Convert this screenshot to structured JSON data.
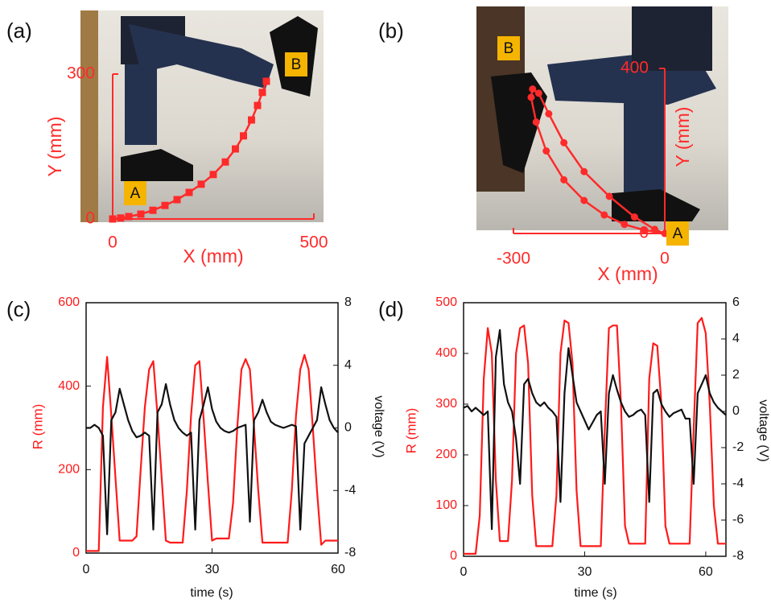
{
  "chart_data": [
    {
      "type": "line",
      "label": "(a)",
      "xlabel": "X (mm)",
      "ylabel": "Y (mm)",
      "color": "#ff2a2a",
      "marker": "square",
      "annotations": [
        "A",
        "B"
      ],
      "xlim": [
        0,
        500
      ],
      "xticks": [
        0,
        500
      ],
      "ylim": [
        0,
        300
      ],
      "yticks": [
        0,
        300
      ],
      "x": [
        0,
        20,
        40,
        70,
        100,
        130,
        160,
        190,
        220,
        250,
        280,
        305,
        325,
        345,
        360,
        372,
        382
      ],
      "values": [
        0,
        2,
        5,
        10,
        18,
        28,
        40,
        55,
        72,
        92,
        118,
        145,
        172,
        205,
        235,
        262,
        285
      ]
    },
    {
      "type": "line",
      "label": "(b)",
      "xlabel": "X (mm)",
      "ylabel": "Y (mm)",
      "color": "#ff2a2a",
      "marker": "circle",
      "annotations": [
        "A",
        "B"
      ],
      "xlim": [
        -300,
        0
      ],
      "xticks": [
        -300,
        0
      ],
      "ylim": [
        0,
        400
      ],
      "yticks": [
        0,
        400
      ],
      "x": [
        0,
        -40,
        -80,
        -120,
        -160,
        -200,
        -235,
        -255,
        -265,
        -262,
        -250,
        -230,
        -200,
        -160,
        -110,
        -60,
        -20,
        0
      ],
      "values": [
        0,
        8,
        22,
        45,
        80,
        130,
        200,
        270,
        330,
        350,
        340,
        290,
        220,
        150,
        90,
        40,
        10,
        0
      ]
    },
    {
      "type": "line",
      "label": "(c)",
      "xlabel": "time (s)",
      "ylabel": "R (mm)",
      "y2label": "voltage (V)",
      "xlim": [
        0,
        60
      ],
      "xticks": [
        0,
        30,
        60
      ],
      "ylim": [
        0,
        600
      ],
      "yticks": [
        0,
        200,
        400,
        600
      ],
      "y2lim": [
        -8,
        8
      ],
      "y2ticks": [
        -8,
        -4,
        0,
        4,
        8
      ],
      "x": [
        0,
        1,
        2,
        3,
        4,
        5,
        6,
        7,
        8,
        9,
        10,
        11,
        12,
        13,
        14,
        15,
        16,
        17,
        18,
        19,
        20,
        21,
        22,
        23,
        24,
        25,
        26,
        27,
        28,
        29,
        30,
        31,
        32,
        33,
        34,
        35,
        36,
        37,
        38,
        39,
        40,
        41,
        42,
        43,
        44,
        45,
        46,
        47,
        48,
        49,
        50,
        51,
        52,
        53,
        54,
        55,
        56,
        57,
        58,
        59,
        60
      ],
      "series": [
        {
          "color": "#ff1a1a",
          "values": [
            5,
            5,
            5,
            5,
            350,
            470,
            330,
            180,
            30,
            30,
            30,
            30,
            40,
            200,
            350,
            440,
            460,
            330,
            180,
            30,
            25,
            25,
            25,
            25,
            150,
            330,
            450,
            460,
            320,
            170,
            30,
            35,
            35,
            35,
            35,
            120,
            300,
            440,
            465,
            440,
            300,
            150,
            25,
            25,
            25,
            25,
            25,
            25,
            25,
            150,
            330,
            440,
            475,
            440,
            300,
            150,
            20,
            30,
            30,
            30,
            30
          ]
        },
        {
          "color": "#111111",
          "axis": "y2",
          "values": [
            0,
            0,
            0.2,
            0,
            -0.5,
            -6.8,
            0.5,
            1,
            2.5,
            1.5,
            0.5,
            -0.2,
            -0.6,
            -0.5,
            -0.3,
            -0.5,
            -6.5,
            1,
            1.5,
            2.8,
            1.5,
            0.5,
            0,
            -0.3,
            -0.5,
            -0.3,
            -6.5,
            0.5,
            1.5,
            2.6,
            1.2,
            0.4,
            0,
            -0.2,
            -0.3,
            -0.2,
            0,
            0.1,
            0.2,
            -6,
            0.5,
            1,
            1.8,
            1,
            0.4,
            0.2,
            0.1,
            0,
            0.1,
            0.2,
            0.1,
            -6.5,
            -1,
            -0.5,
            0,
            0.5,
            2.6,
            1.5,
            0.5,
            0,
            -0.3
          ]
        }
      ]
    },
    {
      "type": "line",
      "label": "(d)",
      "xlabel": "time (s)",
      "ylabel": "R (mm)",
      "y2label": "voltage (V)",
      "xlim": [
        0,
        65
      ],
      "xticks": [
        0,
        30,
        60
      ],
      "ylim": [
        0,
        500
      ],
      "yticks": [
        0,
        100,
        200,
        300,
        400,
        500
      ],
      "y2lim": [
        -8,
        6
      ],
      "y2ticks": [
        -8,
        -6,
        -4,
        -2,
        0,
        2,
        4,
        6
      ],
      "x": [
        0,
        1,
        2,
        3,
        4,
        5,
        6,
        7,
        8,
        9,
        10,
        11,
        12,
        13,
        14,
        15,
        16,
        17,
        18,
        19,
        20,
        21,
        22,
        23,
        24,
        25,
        26,
        27,
        28,
        29,
        30,
        31,
        32,
        33,
        34,
        35,
        36,
        37,
        38,
        39,
        40,
        41,
        42,
        43,
        44,
        45,
        46,
        47,
        48,
        49,
        50,
        51,
        52,
        53,
        54,
        55,
        56,
        57,
        58,
        59,
        60,
        61,
        62,
        63,
        64,
        65
      ],
      "series": [
        {
          "color": "#ff1a1a",
          "values": [
            5,
            5,
            5,
            5,
            80,
            350,
            450,
            400,
            150,
            30,
            30,
            30,
            150,
            400,
            450,
            455,
            380,
            120,
            20,
            20,
            20,
            20,
            20,
            120,
            400,
            465,
            460,
            380,
            130,
            20,
            20,
            20,
            20,
            20,
            20,
            250,
            450,
            455,
            455,
            300,
            60,
            25,
            25,
            25,
            25,
            25,
            350,
            420,
            415,
            300,
            60,
            25,
            25,
            25,
            25,
            25,
            25,
            250,
            460,
            470,
            440,
            300,
            100,
            25,
            25,
            25
          ]
        },
        {
          "color": "#111111",
          "axis": "y2",
          "values": [
            0.2,
            0.3,
            0,
            0.2,
            0,
            -0.2,
            0,
            -6.5,
            3,
            4.5,
            1.5,
            0.5,
            0,
            -1.5,
            -4,
            1.5,
            1.8,
            1,
            0.5,
            0.3,
            0.5,
            0.2,
            0,
            -0.3,
            -5,
            1,
            3.5,
            2,
            0.5,
            0,
            -0.5,
            -1,
            -0.6,
            -0.2,
            0,
            -4,
            1,
            2,
            1.2,
            0.5,
            0,
            -0.3,
            -0.2,
            0,
            0.1,
            -0.2,
            -5,
            1,
            1.2,
            0.4,
            0,
            -0.3,
            -0.1,
            0,
            0.1,
            -0.4,
            -0.4,
            -4,
            1,
            1.5,
            2,
            1,
            0.5,
            0.2,
            0,
            -0.2
          ]
        }
      ]
    }
  ]
}
